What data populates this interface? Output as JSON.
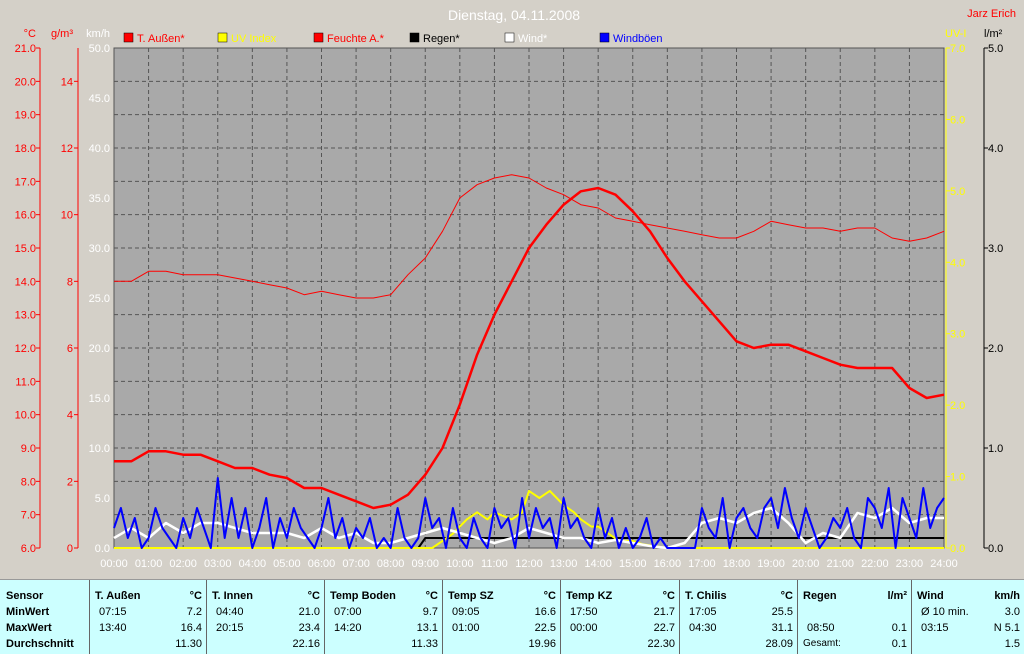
{
  "chart_data": {
    "type": "line",
    "title": "Dienstag, 04.11.2008",
    "author": "Jarz Erich",
    "x_ticks": [
      "00:00",
      "01:00",
      "02:00",
      "03:00",
      "04:00",
      "05:00",
      "06:00",
      "07:00",
      "08:00",
      "09:00",
      "10:00",
      "11:00",
      "12:00",
      "13:00",
      "14:00",
      "15:00",
      "16:00",
      "17:00",
      "18:00",
      "19:00",
      "20:00",
      "21:00",
      "22:00",
      "23:00",
      "24:00"
    ],
    "axes": {
      "temp": {
        "label": "°C",
        "min": 6,
        "max": 21,
        "ticks": [
          "21.0",
          "20.0",
          "19.0",
          "18.0",
          "17.0",
          "16.0",
          "15.0",
          "14.0",
          "13.0",
          "12.0",
          "11.0",
          "10.0",
          "9.0",
          "8.0",
          "7.0",
          "6.0"
        ],
        "color": "#ff0000"
      },
      "humidity": {
        "label": "g/m³",
        "min": 0,
        "max": 15,
        "ticks": [
          "14",
          "12",
          "10",
          "8",
          "6",
          "4",
          "2",
          "0"
        ],
        "color": "#ff0000"
      },
      "wind": {
        "label": "km/h",
        "min": 0,
        "max": 50,
        "ticks": [
          "50.0",
          "45.0",
          "40.0",
          "35.0",
          "30.0",
          "25.0",
          "20.0",
          "15.0",
          "10.0",
          "5.0",
          "0.0"
        ],
        "color": "#ffffff"
      },
      "uv": {
        "label": "UV-I",
        "min": 0,
        "max": 7,
        "ticks": [
          "7.0",
          "6.0",
          "5.0",
          "4.0",
          "3.0",
          "2.0",
          "1.0",
          "0.0"
        ],
        "color": "#ffff00"
      },
      "rain": {
        "label": "l/m²",
        "min": 0,
        "max": 5,
        "ticks": [
          "5.0",
          "4.0",
          "3.0",
          "2.0",
          "1.0",
          "0.0"
        ],
        "color": "#000000"
      }
    },
    "legend": [
      {
        "name": "T. Außen*",
        "color": "#ff0000"
      },
      {
        "name": "UV Index",
        "color": "#ffff00"
      },
      {
        "name": "Feuchte A.*",
        "color": "#ff0000"
      },
      {
        "name": "Regen*",
        "color": "#000000"
      },
      {
        "name": "Wind*",
        "color": "#ffffff"
      },
      {
        "name": "Windböen",
        "color": "#0000ff"
      }
    ],
    "series": [
      {
        "name": "T. Außen*",
        "axis": "temp",
        "color": "#ff0000",
        "width": 2.5,
        "x": [
          0,
          0.5,
          1,
          1.5,
          2,
          2.5,
          3,
          3.5,
          4,
          4.5,
          5,
          5.5,
          6,
          6.5,
          7,
          7.5,
          8,
          8.5,
          9,
          9.5,
          10,
          10.5,
          11,
          11.5,
          12,
          12.5,
          13,
          13.5,
          14,
          14.5,
          15,
          15.5,
          16,
          16.5,
          17,
          17.5,
          18,
          18.5,
          19,
          19.5,
          20,
          20.5,
          21,
          21.5,
          22,
          22.5,
          23,
          23.5,
          24
        ],
        "y": [
          8.6,
          8.6,
          8.9,
          8.9,
          8.8,
          8.8,
          8.6,
          8.4,
          8.4,
          8.2,
          8.1,
          7.8,
          7.8,
          7.6,
          7.4,
          7.2,
          7.3,
          7.6,
          8.2,
          9.0,
          10.3,
          11.8,
          13.0,
          14.0,
          15.0,
          15.7,
          16.3,
          16.7,
          16.8,
          16.6,
          16.1,
          15.5,
          14.7,
          14.0,
          13.4,
          12.8,
          12.2,
          12.0,
          12.1,
          12.1,
          11.9,
          11.7,
          11.5,
          11.4,
          11.4,
          11.4,
          10.8,
          10.5,
          10.6
        ]
      },
      {
        "name": "Feuchte A.*",
        "axis": "humidity",
        "color": "#ff0000",
        "width": 1,
        "x": [
          0,
          0.5,
          1,
          1.5,
          2,
          2.5,
          3,
          3.5,
          4,
          4.5,
          5,
          5.5,
          6,
          6.5,
          7,
          7.5,
          8,
          8.5,
          9,
          9.5,
          10,
          10.5,
          11,
          11.5,
          12,
          12.5,
          13,
          13.5,
          14,
          14.5,
          15,
          15.5,
          16,
          16.5,
          17,
          17.5,
          18,
          18.5,
          19,
          19.5,
          20,
          20.5,
          21,
          21.5,
          22,
          22.5,
          23,
          23.5,
          24
        ],
        "y": [
          8.0,
          8.0,
          8.3,
          8.3,
          8.2,
          8.2,
          8.2,
          8.1,
          8.0,
          7.9,
          7.8,
          7.6,
          7.7,
          7.6,
          7.5,
          7.5,
          7.6,
          8.2,
          8.7,
          9.5,
          10.5,
          10.9,
          11.1,
          11.2,
          11.1,
          10.8,
          10.6,
          10.3,
          10.2,
          9.9,
          9.8,
          9.7,
          9.6,
          9.5,
          9.4,
          9.3,
          9.3,
          9.5,
          9.8,
          9.7,
          9.6,
          9.6,
          9.5,
          9.6,
          9.6,
          9.3,
          9.2,
          9.3,
          9.5
        ]
      },
      {
        "name": "Regen*",
        "axis": "rain",
        "color": "#000000",
        "width": 2,
        "x": [
          0,
          8.8,
          9.0,
          24
        ],
        "y": [
          0,
          0,
          0.1,
          0.1
        ]
      },
      {
        "name": "UV Index",
        "axis": "uv",
        "color": "#ffff00",
        "width": 2,
        "x": [
          0,
          9.2,
          9.5,
          9.8,
          10,
          10.2,
          10.5,
          10.8,
          11,
          11.5,
          11.8,
          12,
          12.3,
          12.6,
          12.8,
          13,
          13.3,
          13.5,
          13.8,
          14,
          14.3,
          14.6,
          15,
          15.3,
          16,
          24
        ],
        "y": [
          0,
          0,
          0.1,
          0.2,
          0.3,
          0.4,
          0.5,
          0.4,
          0.5,
          0.4,
          0.5,
          0.8,
          0.7,
          0.8,
          0.7,
          0.6,
          0.5,
          0.4,
          0.3,
          0.3,
          0.2,
          0.1,
          0.1,
          0.05,
          0,
          0
        ]
      },
      {
        "name": "Wind*",
        "axis": "wind",
        "color": "#ffffff",
        "width": 2.5,
        "x": [
          0,
          0.5,
          1,
          1.5,
          2,
          2.5,
          3,
          3.5,
          4,
          4.5,
          5,
          5.5,
          6,
          6.5,
          7,
          7.5,
          8,
          8.5,
          9,
          9.5,
          10,
          10.5,
          11,
          11.5,
          12,
          12.5,
          13,
          13.5,
          14,
          14.5,
          15,
          15.5,
          16,
          16.5,
          17,
          17.5,
          18,
          18.5,
          19,
          19.5,
          20,
          20.5,
          21,
          21.5,
          22,
          22.5,
          23,
          23.5,
          24
        ],
        "y": [
          1.0,
          2.0,
          1.0,
          2.5,
          1.5,
          2.5,
          2.5,
          2.0,
          1.5,
          1.5,
          1.5,
          1.0,
          2.0,
          1.0,
          1.5,
          0.5,
          0.5,
          1.0,
          1.5,
          2.0,
          1.5,
          1.0,
          0.5,
          1.0,
          2.0,
          1.5,
          1.0,
          1.0,
          0.5,
          0.8,
          0.5,
          0.2,
          0.0,
          0.5,
          2.5,
          3.0,
          2.5,
          3.5,
          4.0,
          2.5,
          0.5,
          1.5,
          1.0,
          3.5,
          3.0,
          4.0,
          2.5,
          3.0,
          3.0
        ]
      },
      {
        "name": "Windböen",
        "axis": "wind",
        "color": "#0000ff",
        "width": 2,
        "x": [
          0,
          0.2,
          0.4,
          0.6,
          0.8,
          1.0,
          1.2,
          1.4,
          1.6,
          1.8,
          2.0,
          2.2,
          2.4,
          2.6,
          2.8,
          3.0,
          3.2,
          3.4,
          3.6,
          3.8,
          4.0,
          4.2,
          4.4,
          4.6,
          4.8,
          5.0,
          5.2,
          5.4,
          5.6,
          5.8,
          6.0,
          6.2,
          6.4,
          6.6,
          6.8,
          7.0,
          7.2,
          7.4,
          7.6,
          7.8,
          8.0,
          8.2,
          8.4,
          8.6,
          8.8,
          9.0,
          9.2,
          9.4,
          9.6,
          9.8,
          10.0,
          10.2,
          10.4,
          10.6,
          10.8,
          11.0,
          11.2,
          11.4,
          11.6,
          11.8,
          12.0,
          12.2,
          12.4,
          12.6,
          12.8,
          13.0,
          13.2,
          13.4,
          13.6,
          13.8,
          14.0,
          14.2,
          14.4,
          14.6,
          14.8,
          15.0,
          15.2,
          15.4,
          15.6,
          15.8,
          16.0,
          16.2,
          16.4,
          16.6,
          16.8,
          17.0,
          17.2,
          17.4,
          17.6,
          17.8,
          18.0,
          18.2,
          18.4,
          18.6,
          18.8,
          19.0,
          19.2,
          19.4,
          19.6,
          19.8,
          20.0,
          20.2,
          20.4,
          20.6,
          20.8,
          21.0,
          21.2,
          21.4,
          21.6,
          21.8,
          22.0,
          22.2,
          22.4,
          22.6,
          22.8,
          23.0,
          23.2,
          23.4,
          23.6,
          23.8,
          24.0
        ],
        "y": [
          2,
          4,
          1,
          3,
          0,
          1,
          4,
          2,
          1,
          0,
          3,
          1,
          4,
          2,
          0,
          7,
          1,
          5,
          1,
          4,
          0,
          2,
          5,
          0,
          3,
          1,
          4,
          2,
          1,
          0,
          2,
          5,
          1,
          3,
          0,
          2,
          1,
          3,
          0,
          1,
          0,
          4,
          1,
          0,
          1,
          5,
          2,
          3,
          0,
          4,
          1,
          0,
          3,
          1,
          0,
          4,
          2,
          3,
          0,
          5,
          1,
          4,
          2,
          3,
          0,
          5,
          2,
          3,
          1,
          0,
          4,
          1,
          3,
          0,
          2,
          0,
          1,
          3,
          0,
          1,
          0,
          0,
          0,
          0,
          0,
          4,
          2,
          1,
          5,
          0,
          3,
          4,
          2,
          1,
          4,
          5,
          2,
          6,
          3,
          1,
          4,
          2,
          0,
          1,
          3,
          2,
          4,
          1,
          0,
          5,
          4,
          2,
          6,
          0,
          5,
          3,
          1,
          6,
          2,
          4,
          5
        ]
      }
    ]
  },
  "table": {
    "sensor_col": {
      "header": "Sensor",
      "rows": [
        "MinWert",
        "MaxWert",
        "Durchschnitt"
      ]
    },
    "columns": [
      {
        "name": "T. Außen",
        "unit": "°C",
        "min_time": "07:15",
        "min_val": "7.2",
        "max_time": "13:40",
        "max_val": "16.4",
        "avg": "11.30"
      },
      {
        "name": "T. Innen",
        "unit": "°C",
        "min_time": "04:40",
        "min_val": "21.0",
        "max_time": "20:15",
        "max_val": "23.4",
        "avg": "22.16"
      },
      {
        "name": "Temp Boden",
        "unit": "°C",
        "min_time": "07:00",
        "min_val": "9.7",
        "max_time": "14:20",
        "max_val": "13.1",
        "avg": "11.33"
      },
      {
        "name": "Temp SZ",
        "unit": "°C",
        "min_time": "09:05",
        "min_val": "16.6",
        "max_time": "01:00",
        "max_val": "22.5",
        "avg": "19.96"
      },
      {
        "name": "Temp KZ",
        "unit": "°C",
        "min_time": "17:50",
        "min_val": "21.7",
        "max_time": "00:00",
        "max_val": "22.7",
        "avg": "22.30"
      },
      {
        "name": "T. Chilis",
        "unit": "°C",
        "min_time": "17:05",
        "min_val": "25.5",
        "max_time": "04:30",
        "max_val": "31.1",
        "avg": "28.09"
      }
    ],
    "rain": {
      "name": "Regen",
      "unit": "l/m²",
      "min_time": "",
      "min_val": "",
      "max_time": "08:50",
      "max_val": "0.1",
      "avg_label": "Gesamt:",
      "avg": "0.1"
    },
    "wind": {
      "name": "Wind",
      "unit": "km/h",
      "min_time": "Ø 10 min.",
      "min_val": "3.0",
      "max_time": "03:15",
      "max_val": "N 5.1",
      "avg": "1.5"
    }
  }
}
